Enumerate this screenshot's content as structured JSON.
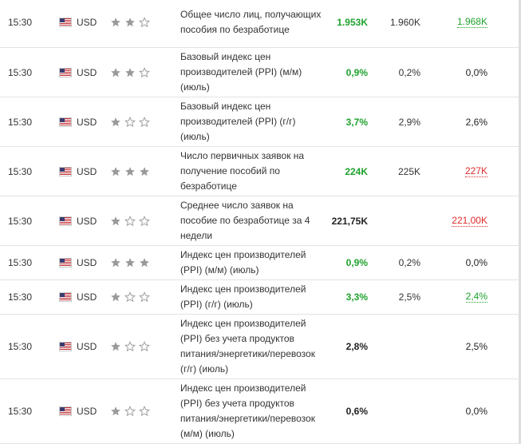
{
  "rows": [
    {
      "time": "15:30",
      "currency": "USD",
      "stars": 2,
      "event": "Общее число лиц, получающих пособия по безработице",
      "actual": "1.953K",
      "actual_color": "#1fa22e",
      "forecast": "1.960K",
      "previous": "1.968K",
      "previous_style": "up"
    },
    {
      "time": "15:30",
      "currency": "USD",
      "stars": 2,
      "event": "Базовый индекс цен производителей (PPI) (м/м) (июль)",
      "actual": "0,9%",
      "actual_color": "#1fa22e",
      "forecast": "0,2%",
      "previous": "0,0%",
      "previous_style": ""
    },
    {
      "time": "15:30",
      "currency": "USD",
      "stars": 1,
      "event": "Базовый индекс цен производителей (PPI) (г/г) (июль)",
      "actual": "3,7%",
      "actual_color": "#1fa22e",
      "forecast": "2,9%",
      "previous": "2,6%",
      "previous_style": ""
    },
    {
      "time": "15:30",
      "currency": "USD",
      "stars": 3,
      "event": "Число первичных заявок на получение пособий по безработице",
      "actual": "224K",
      "actual_color": "#1fa22e",
      "forecast": "225K",
      "previous": "227K",
      "previous_style": "down"
    },
    {
      "time": "15:30",
      "currency": "USD",
      "stars": 1,
      "event": "Среднее число заявок на пособие по безработице за 4 недели",
      "actual": "221,75K",
      "actual_color": "#222222",
      "forecast": "",
      "previous": "221,00K",
      "previous_style": "down"
    },
    {
      "time": "15:30",
      "currency": "USD",
      "stars": 3,
      "event": "Индекс цен производителей (PPI) (м/м) (июль)",
      "actual": "0,9%",
      "actual_color": "#1fa22e",
      "forecast": "0,2%",
      "previous": "0,0%",
      "previous_style": ""
    },
    {
      "time": "15:30",
      "currency": "USD",
      "stars": 1,
      "event": "Индекс цен производителей (PPI) (г/г) (июль)",
      "actual": "3,3%",
      "actual_color": "#1fa22e",
      "forecast": "2,5%",
      "previous": "2,4%",
      "previous_style": "up"
    },
    {
      "time": "15:30",
      "currency": "USD",
      "stars": 1,
      "event": "Индекс цен производителей (PPI) без учета продуктов питания/энергетики/перевозок (г/г) (июль)",
      "actual": "2,8%",
      "actual_color": "#222222",
      "forecast": "",
      "previous": "2,5%",
      "previous_style": ""
    },
    {
      "time": "15:30",
      "currency": "USD",
      "stars": 1,
      "event": "Индекс цен производителей (PPI) без учета продуктов питания/энергетики/перевозок (м/м) (июль)",
      "actual": "0,6%",
      "actual_color": "#222222",
      "forecast": "",
      "previous": "0,0%",
      "previous_style": ""
    }
  ]
}
